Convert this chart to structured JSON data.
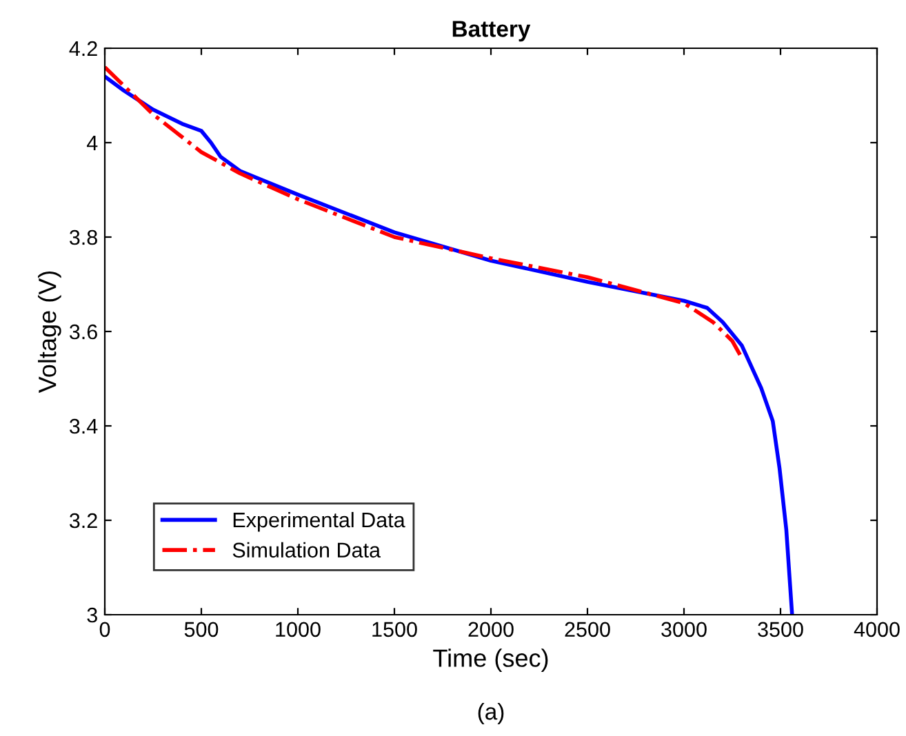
{
  "chart_data": {
    "type": "line",
    "title": "Battery",
    "xlabel": "Time (sec)",
    "ylabel": "Voltage (V)",
    "annotations": [
      "(a)"
    ],
    "xlim": [
      0,
      4000
    ],
    "ylim": [
      3,
      4.2
    ],
    "xticks": [
      0,
      500,
      1000,
      1500,
      2000,
      2500,
      3000,
      3500,
      4000
    ],
    "yticks": [
      3,
      3.2,
      3.4,
      3.6,
      3.8,
      4,
      4.2
    ],
    "grid": false,
    "legend": "bottom left",
    "marker": "none",
    "series": [
      {
        "name": "Experimental Data",
        "color": "#0000ff",
        "line_style": "solid",
        "x": [
          0,
          100,
          250,
          400,
          500,
          550,
          600,
          700,
          1000,
          1500,
          2000,
          2500,
          3000,
          3120,
          3200,
          3300,
          3400,
          3460,
          3495,
          3530,
          3550,
          3560
        ],
        "values": [
          4.14,
          4.11,
          4.07,
          4.04,
          4.025,
          4.0,
          3.97,
          3.94,
          3.89,
          3.81,
          3.75,
          3.705,
          3.665,
          3.65,
          3.62,
          3.57,
          3.48,
          3.41,
          3.31,
          3.18,
          3.06,
          3.0
        ]
      },
      {
        "name": "Simulation Data",
        "color": "#ff0000",
        "line_style": "dashdot",
        "x": [
          0,
          250,
          500,
          700,
          1000,
          1500,
          2000,
          2500,
          3000,
          3150,
          3250,
          3295
        ],
        "values": [
          4.16,
          4.06,
          3.98,
          3.935,
          3.88,
          3.8,
          3.755,
          3.715,
          3.66,
          3.62,
          3.58,
          3.547
        ]
      }
    ]
  }
}
